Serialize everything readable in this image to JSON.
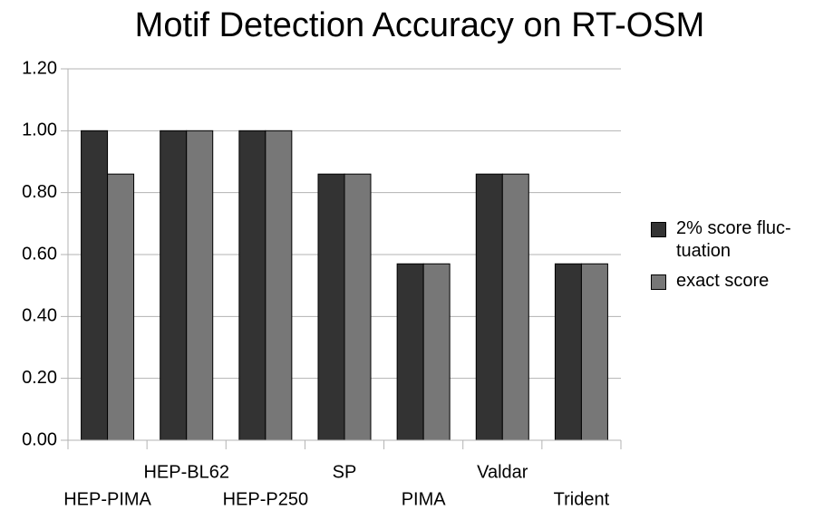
{
  "chart_data": {
    "type": "bar",
    "title": "Motif Detection Accuracy on RT-OSM",
    "categories": [
      "HEP-PIMA",
      "HEP-BL62",
      "HEP-P250",
      "SP",
      "PIMA",
      "Valdar",
      "Trident"
    ],
    "series": [
      {
        "name": "2% score fluc-tuation",
        "color": "#333333",
        "values": [
          1.0,
          1.0,
          1.0,
          0.86,
          0.57,
          0.86,
          0.57
        ]
      },
      {
        "name": "exact score",
        "color": "#777777",
        "values": [
          0.86,
          1.0,
          1.0,
          0.86,
          0.57,
          0.86,
          0.57
        ]
      }
    ],
    "ylim": [
      0,
      1.2
    ],
    "yticks": [
      {
        "value": 0,
        "label": "0.00"
      },
      {
        "value": 0.2,
        "label": "0.20"
      },
      {
        "value": 0.4,
        "label": "0.40"
      },
      {
        "value": 0.6,
        "label": "0.60"
      },
      {
        "value": 0.8,
        "label": "0.80"
      },
      {
        "value": 1.0,
        "label": "1.00"
      },
      {
        "value": 1.2,
        "label": "1.20"
      }
    ],
    "grid": true,
    "legend": "right"
  }
}
